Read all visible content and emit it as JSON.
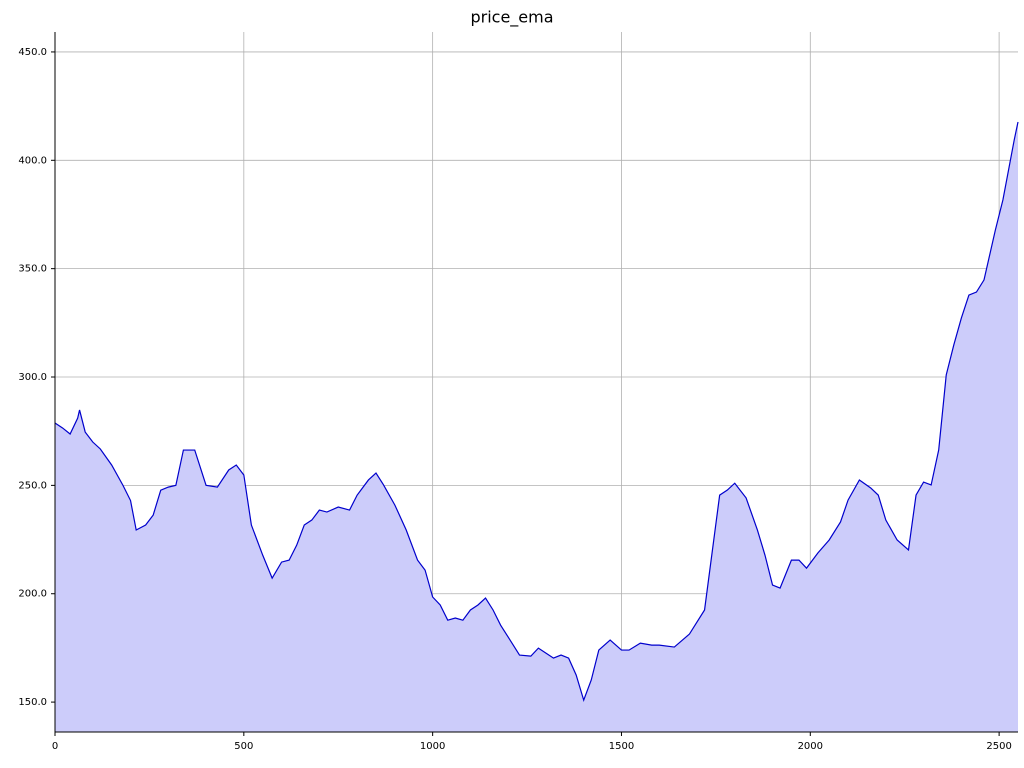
{
  "chart_data": {
    "type": "area",
    "title": "price_ema",
    "x": [
      0,
      20,
      40,
      60,
      65,
      80,
      100,
      120,
      150,
      180,
      200,
      215,
      240,
      260,
      280,
      300,
      320,
      340,
      370,
      400,
      430,
      460,
      480,
      500,
      520,
      550,
      575,
      600,
      620,
      640,
      660,
      680,
      700,
      720,
      750,
      780,
      800,
      830,
      850,
      870,
      900,
      930,
      960,
      980,
      1000,
      1020,
      1040,
      1060,
      1080,
      1100,
      1120,
      1140,
      1160,
      1180,
      1200,
      1230,
      1260,
      1280,
      1300,
      1320,
      1340,
      1360,
      1380,
      1400,
      1420,
      1440,
      1470,
      1500,
      1520,
      1550,
      1580,
      1600,
      1640,
      1680,
      1720,
      1760,
      1780,
      1800,
      1830,
      1860,
      1880,
      1900,
      1920,
      1950,
      1970,
      1990,
      2020,
      2050,
      2080,
      2100,
      2130,
      2160,
      2180,
      2200,
      2230,
      2260,
      2280,
      2300,
      2320,
      2340,
      2360,
      2380,
      2400,
      2420,
      2440,
      2460,
      2490,
      2510,
      2540,
      2550
    ],
    "values": [
      278.8,
      276.5,
      273.7,
      281,
      284.8,
      274.6,
      270,
      266.8,
      259.4,
      250,
      243,
      229.4,
      231.7,
      236.3,
      247.8,
      249.2,
      250,
      266.3,
      266.3,
      250,
      249.2,
      257.1,
      259.4,
      254.8,
      231.7,
      217.8,
      207.2,
      214.6,
      215.5,
      222.4,
      231.7,
      234,
      238.6,
      237.7,
      240,
      238.6,
      245.5,
      252.5,
      255.7,
      250.2,
      240.9,
      229.4,
      215.5,
      210.9,
      198.5,
      194.8,
      187.8,
      188.8,
      187.8,
      192.5,
      194.8,
      198,
      192.5,
      185.5,
      180,
      171.7,
      171.2,
      174.9,
      172.6,
      170.3,
      171.7,
      170.3,
      162.5,
      150.9,
      160.2,
      174,
      178.6,
      174,
      174,
      177.2,
      176.3,
      176.3,
      175.4,
      181.4,
      192.5,
      245.5,
      247.8,
      251,
      244.2,
      229.4,
      217.8,
      204,
      202.6,
      215.5,
      215.5,
      211.8,
      218.8,
      224.8,
      233.1,
      243.2,
      252.5,
      248.8,
      245.5,
      234,
      224.8,
      220.2,
      245.5,
      251.5,
      250.2,
      266.3,
      301,
      314.8,
      327.2,
      337.8,
      339.2,
      344.8,
      367.8,
      381.7,
      409.4,
      417.7
    ],
    "color": "#0000cc",
    "fill_color": "#ccccfa",
    "xlim": [
      0,
      2550
    ],
    "xticks": [
      0,
      500,
      1000,
      1500,
      2000,
      2500
    ],
    "ylim": [
      136.2,
      459.2
    ],
    "yticks": [
      {
        "value": 150,
        "label": "150.0"
      },
      {
        "value": 200,
        "label": "200.0"
      },
      {
        "value": 250,
        "label": "250.0"
      },
      {
        "value": 300,
        "label": "300.0"
      },
      {
        "value": 350,
        "label": "350.0"
      },
      {
        "value": 400,
        "label": "400.0"
      },
      {
        "value": 450,
        "label": "450.0"
      }
    ],
    "grid": true
  }
}
